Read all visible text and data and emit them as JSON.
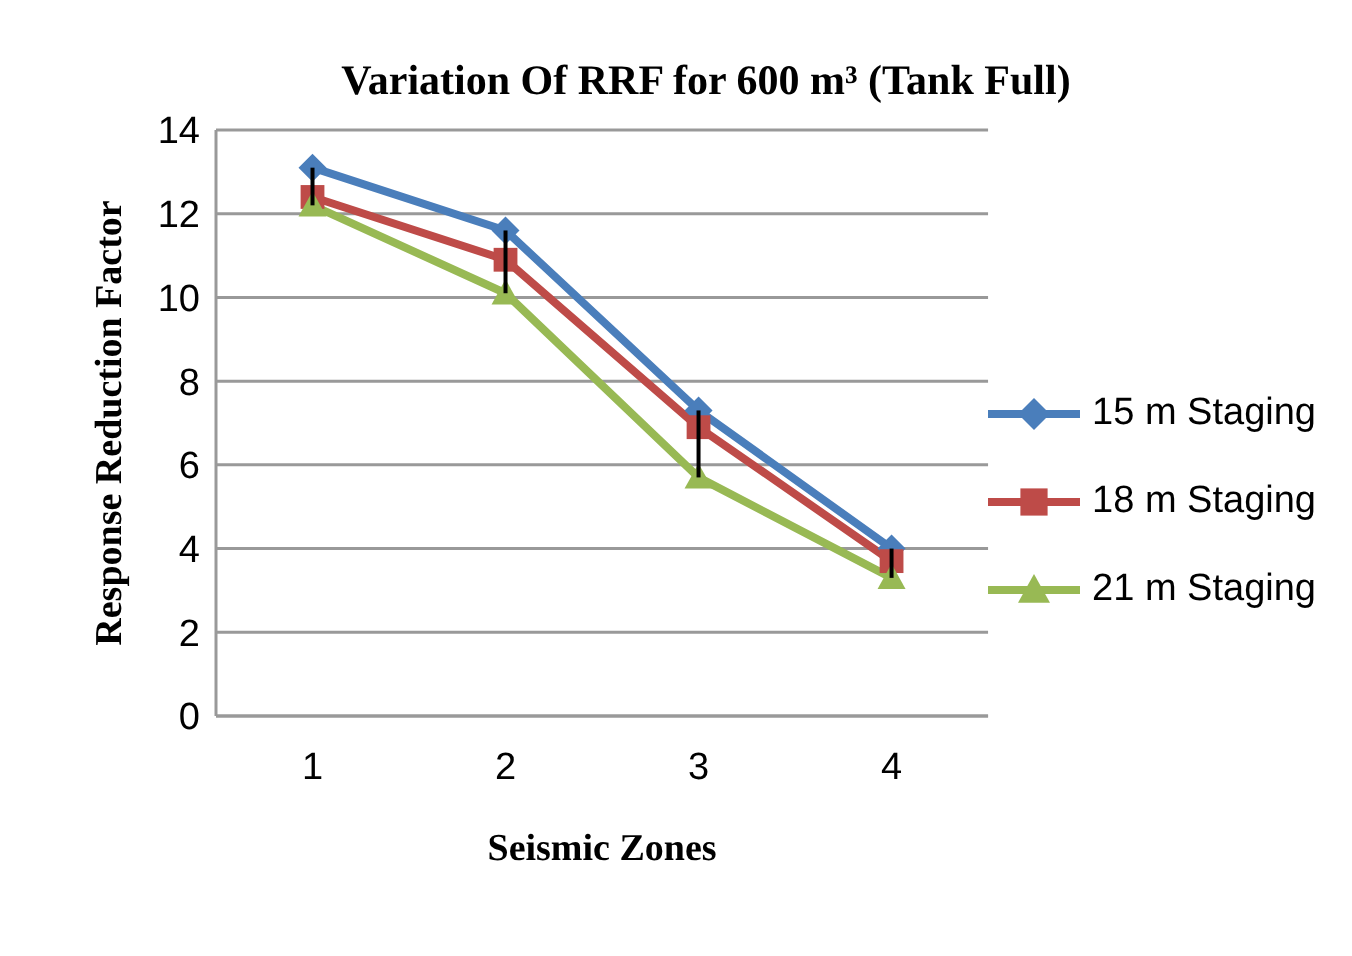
{
  "chart_data": {
    "type": "line",
    "title": "Variation Of RRF for 600 m³ (Tank Full)",
    "xlabel": "Seismic Zones",
    "ylabel": "Response Reduction Factor",
    "categories": [
      "1",
      "2",
      "3",
      "4"
    ],
    "series": [
      {
        "name": "15 m Staging",
        "color": "#4a7ebb",
        "marker": "diamond",
        "values": [
          13.1,
          11.6,
          7.3,
          4.0
        ]
      },
      {
        "name": "18 m Staging",
        "color": "#be4b48",
        "marker": "square",
        "values": [
          12.4,
          10.9,
          6.9,
          3.7
        ],
        "errors": [
          [
            12.2,
            13.1
          ],
          [
            10.1,
            11.6
          ],
          [
            5.7,
            7.3
          ],
          [
            3.3,
            4.0
          ]
        ]
      },
      {
        "name": "21 m Staging",
        "color": "#98b954",
        "marker": "triangle",
        "values": [
          12.2,
          10.1,
          5.7,
          3.3
        ]
      }
    ],
    "ylim": [
      0,
      14
    ],
    "yticks": [
      0,
      2,
      4,
      6,
      8,
      10,
      12,
      14
    ],
    "grid": "y",
    "legend": "right"
  }
}
